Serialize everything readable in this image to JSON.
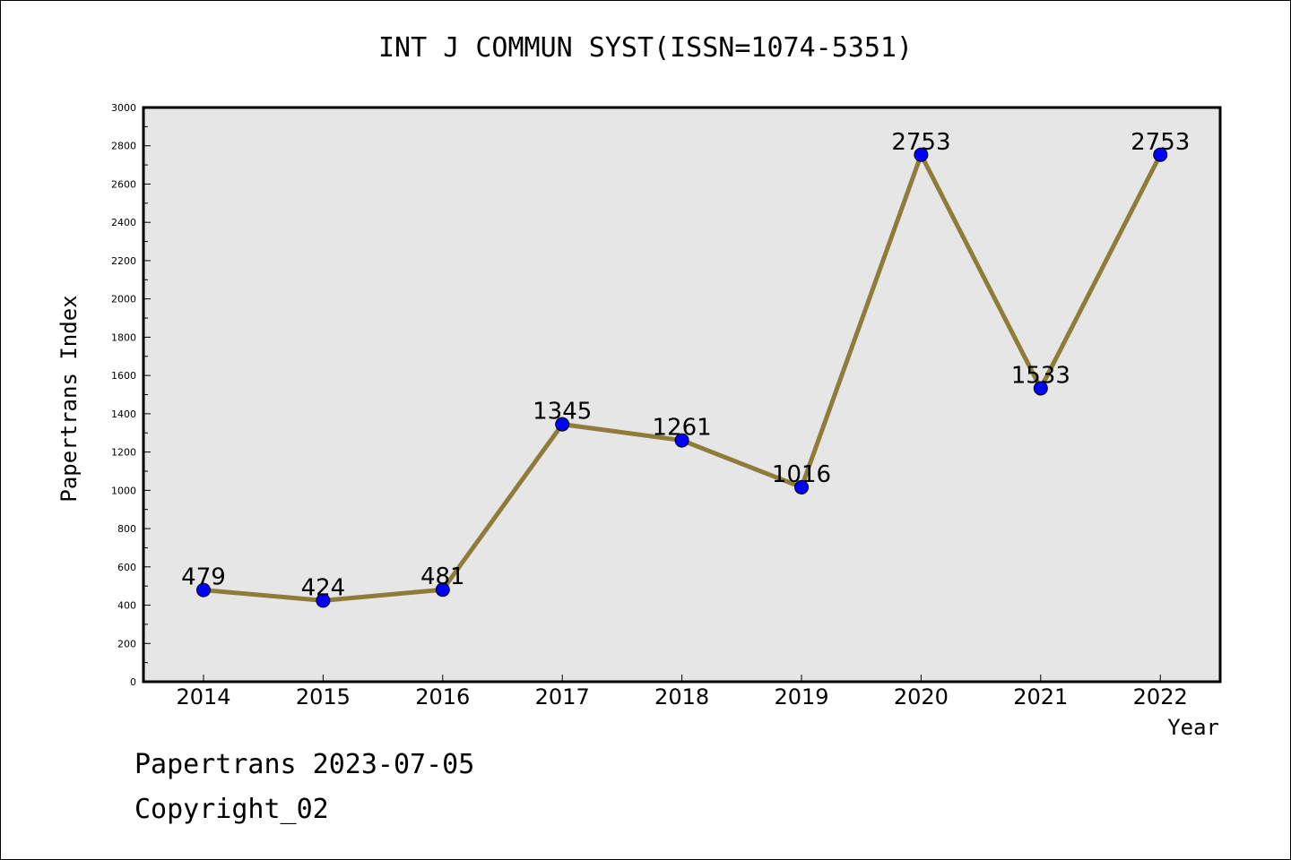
{
  "chart_data": {
    "type": "line",
    "title": "INT J COMMUN SYST(ISSN=1074-5351)",
    "xlabel": "Year",
    "ylabel": "Papertrans Index",
    "categories": [
      "2014",
      "2015",
      "2016",
      "2017",
      "2018",
      "2019",
      "2020",
      "2021",
      "2022"
    ],
    "series": [
      {
        "values": [
          479,
          424,
          481,
          1345,
          1261,
          1016,
          2753,
          1533,
          2753
        ]
      }
    ],
    "ylim": [
      0,
      3000
    ],
    "yticks": [
      "0",
      "200",
      "400",
      "600",
      "800",
      "1000",
      "1200",
      "1400",
      "1600",
      "1800",
      "2000",
      "2200",
      "2400",
      "2600",
      "2800",
      "3000"
    ],
    "data_labels": [
      "479",
      "424",
      "481",
      "1345",
      "1261",
      "1016",
      "2753",
      "1533",
      "2753"
    ],
    "grid": false,
    "legend": "none",
    "colors": {
      "line": "#8f7c3a",
      "marker": "#0000ff",
      "plot_bg": "#e6e6e6"
    }
  },
  "footer": {
    "date_line": "Papertrans 2023-07-05",
    "copyright": "Copyright_02"
  }
}
